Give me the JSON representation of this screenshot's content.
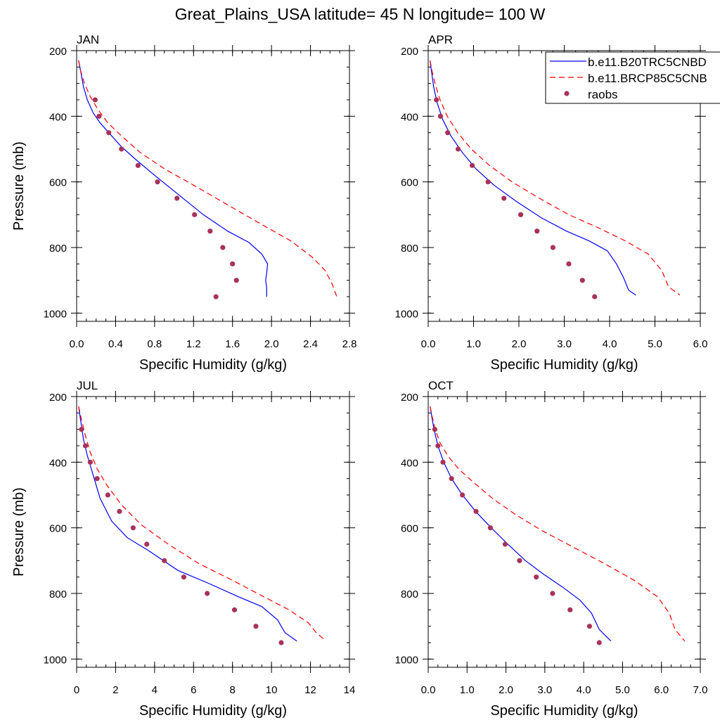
{
  "title": "Great_Plains_USA  latitude= 45 N longitude= 100 W",
  "colors": {
    "model1": "#0000ff",
    "model2": "#ff0000",
    "raobs": "#a8325a",
    "axis": "#000000"
  },
  "legend": {
    "entries": [
      "b.e11.B20TRC5CNBD",
      "b.e11.BRCP85C5CNB",
      "raobs"
    ]
  },
  "chart_data": [
    {
      "type": "line",
      "title": "JAN",
      "xlabel": "Specific Humidity (g/kg)",
      "ylabel": "Pressure (mb)",
      "xlim": [
        0,
        2.8
      ],
      "ylim": [
        200,
        1025
      ],
      "xticks": [
        0.0,
        0.4,
        0.8,
        1.2,
        1.6,
        2.0,
        2.4,
        2.8
      ],
      "xtick_labels": [
        "0.0",
        "0.4",
        "0.8",
        "1.2",
        "1.6",
        "2.0",
        "2.4",
        "2.8"
      ],
      "xminor": 0.1,
      "yticks": [
        200,
        400,
        600,
        800,
        1000
      ],
      "ytick_labels": [
        "200",
        "400",
        "600",
        "800",
        "1000"
      ],
      "series": [
        {
          "name": "b.e11.B20TRC5CNBD",
          "style": "solid",
          "x": [
            0.02,
            0.04,
            0.07,
            0.11,
            0.17,
            0.24,
            0.33,
            0.45,
            0.6,
            0.8,
            1.05,
            1.3,
            1.55,
            1.77,
            1.9,
            1.96,
            1.95,
            1.94,
            1.95,
            1.95
          ],
          "y": [
            230,
            260,
            310,
            350,
            390,
            420,
            450,
            490,
            530,
            580,
            640,
            700,
            750,
            785,
            820,
            850,
            880,
            900,
            920,
            950
          ]
        },
        {
          "name": "b.e11.BRCP85C5CNB",
          "style": "dashed",
          "x": [
            0.02,
            0.04,
            0.08,
            0.14,
            0.22,
            0.32,
            0.46,
            0.65,
            0.9,
            1.2,
            1.55,
            1.9,
            2.2,
            2.42,
            2.55,
            2.62,
            2.67
          ],
          "y": [
            230,
            260,
            300,
            340,
            380,
            420,
            460,
            510,
            560,
            610,
            670,
            730,
            780,
            830,
            870,
            910,
            950
          ]
        },
        {
          "name": "raobs",
          "style": "markers",
          "x": [
            0.19,
            0.23,
            0.33,
            0.46,
            0.63,
            0.83,
            1.03,
            1.21,
            1.37,
            1.5,
            1.6,
            1.64,
            1.43
          ],
          "y": [
            350,
            400,
            450,
            500,
            550,
            600,
            650,
            700,
            750,
            800,
            850,
            900,
            950
          ]
        }
      ]
    },
    {
      "type": "line",
      "title": "APR",
      "xlabel": "Specific Humidity (g/kg)",
      "ylabel": "",
      "xlim": [
        0,
        6.0
      ],
      "ylim": [
        200,
        1025
      ],
      "xticks": [
        0.0,
        1.0,
        2.0,
        3.0,
        4.0,
        5.0,
        6.0
      ],
      "xtick_labels": [
        "0.0",
        "1.0",
        "2.0",
        "3.0",
        "4.0",
        "5.0",
        "6.0"
      ],
      "xminor": 0.25,
      "yticks": [
        200,
        400,
        600,
        800,
        1000
      ],
      "ytick_labels": [
        "200",
        "400",
        "600",
        "800",
        "1000"
      ],
      "series": [
        {
          "name": "b.e11.B20TRC5CNBD",
          "style": "solid",
          "x": [
            0.04,
            0.07,
            0.12,
            0.2,
            0.32,
            0.5,
            0.75,
            1.05,
            1.45,
            1.95,
            2.5,
            3.05,
            3.55,
            3.95,
            4.15,
            4.3,
            4.42,
            4.58
          ],
          "y": [
            230,
            260,
            310,
            360,
            410,
            460,
            510,
            560,
            610,
            660,
            710,
            750,
            780,
            810,
            850,
            890,
            930,
            945
          ]
        },
        {
          "name": "b.e11.BRCP85C5CNB",
          "style": "dashed",
          "x": [
            0.04,
            0.08,
            0.15,
            0.26,
            0.42,
            0.65,
            0.95,
            1.35,
            1.85,
            2.45,
            3.1,
            3.75,
            4.35,
            4.85,
            5.15,
            5.3,
            5.55
          ],
          "y": [
            230,
            260,
            300,
            350,
            400,
            450,
            500,
            550,
            600,
            650,
            700,
            740,
            780,
            820,
            870,
            920,
            945
          ]
        },
        {
          "name": "raobs",
          "style": "markers",
          "x": [
            0.18,
            0.27,
            0.43,
            0.66,
            0.97,
            1.32,
            1.67,
            2.04,
            2.4,
            2.75,
            3.1,
            3.4,
            3.67
          ],
          "y": [
            350,
            400,
            450,
            500,
            550,
            600,
            650,
            700,
            750,
            800,
            850,
            900,
            950
          ]
        }
      ]
    },
    {
      "type": "line",
      "title": "JUL",
      "xlabel": "Specific Humidity (g/kg)",
      "ylabel": "Pressure (mb)",
      "xlim": [
        0,
        14
      ],
      "ylim": [
        200,
        1025
      ],
      "xticks": [
        0,
        2,
        4,
        6,
        8,
        10,
        12,
        14
      ],
      "xtick_labels": [
        "0",
        "2",
        "4",
        "6",
        "8",
        "10",
        "12",
        "14"
      ],
      "xminor": 0.5,
      "yticks": [
        200,
        400,
        600,
        800,
        1000
      ],
      "ytick_labels": [
        "200",
        "400",
        "600",
        "800",
        "1000"
      ],
      "series": [
        {
          "name": "b.e11.B20TRC5CNBD",
          "style": "solid",
          "x": [
            0.1,
            0.2,
            0.35,
            0.55,
            0.8,
            1.2,
            1.8,
            2.6,
            3.7,
            5.2,
            6.8,
            8.3,
            9.5,
            10.3,
            10.7,
            11.3
          ],
          "y": [
            230,
            270,
            330,
            380,
            430,
            510,
            580,
            630,
            670,
            730,
            770,
            810,
            840,
            880,
            920,
            945
          ]
        },
        {
          "name": "b.e11.BRCP85C5CNB",
          "style": "dashed",
          "x": [
            0.1,
            0.25,
            0.45,
            0.7,
            1.05,
            1.55,
            2.3,
            3.3,
            4.7,
            6.3,
            8.0,
            9.6,
            10.9,
            11.9,
            12.3,
            12.8
          ],
          "y": [
            230,
            270,
            320,
            370,
            420,
            470,
            530,
            590,
            650,
            710,
            760,
            810,
            850,
            890,
            920,
            945
          ]
        },
        {
          "name": "raobs",
          "style": "markers",
          "x": [
            0.25,
            0.45,
            0.7,
            1.05,
            1.6,
            2.2,
            2.9,
            3.6,
            4.5,
            5.5,
            6.7,
            8.1,
            9.2,
            10.5
          ],
          "y": [
            300,
            350,
            400,
            450,
            500,
            550,
            600,
            650,
            700,
            750,
            800,
            850,
            900,
            950
          ]
        }
      ]
    },
    {
      "type": "line",
      "title": "OCT",
      "xlabel": "Specific Humidity (g/kg)",
      "ylabel": "",
      "xlim": [
        0,
        7.0
      ],
      "ylim": [
        200,
        1025
      ],
      "xticks": [
        0.0,
        1.0,
        2.0,
        3.0,
        4.0,
        5.0,
        6.0,
        7.0
      ],
      "xtick_labels": [
        "0.0",
        "1.0",
        "2.0",
        "3.0",
        "4.0",
        "5.0",
        "6.0",
        "7.0"
      ],
      "xminor": 0.25,
      "yticks": [
        200,
        400,
        600,
        800,
        1000
      ],
      "ytick_labels": [
        "200",
        "400",
        "600",
        "800",
        "1000"
      ],
      "series": [
        {
          "name": "b.e11.B20TRC5CNBD",
          "style": "solid",
          "x": [
            0.05,
            0.09,
            0.15,
            0.25,
            0.4,
            0.6,
            0.88,
            1.22,
            1.62,
            2.05,
            2.5,
            2.95,
            3.45,
            3.9,
            4.2,
            4.4,
            4.7
          ],
          "y": [
            230,
            260,
            300,
            350,
            400,
            450,
            500,
            550,
            600,
            650,
            700,
            740,
            780,
            820,
            860,
            910,
            945
          ]
        },
        {
          "name": "b.e11.BRCP85C5CNB",
          "style": "dashed",
          "x": [
            0.05,
            0.1,
            0.18,
            0.3,
            0.5,
            0.78,
            1.15,
            1.65,
            2.25,
            2.95,
            3.75,
            4.55,
            5.3,
            5.9,
            6.2,
            6.35,
            6.6
          ],
          "y": [
            230,
            260,
            300,
            340,
            380,
            420,
            460,
            510,
            560,
            610,
            660,
            710,
            760,
            810,
            860,
            910,
            945
          ]
        },
        {
          "name": "raobs",
          "style": "markers",
          "x": [
            0.17,
            0.25,
            0.38,
            0.6,
            0.88,
            1.23,
            1.6,
            1.98,
            2.35,
            2.78,
            3.2,
            3.65,
            4.15,
            4.4
          ],
          "y": [
            300,
            350,
            400,
            450,
            500,
            550,
            600,
            650,
            700,
            750,
            800,
            850,
            900,
            950
          ]
        }
      ]
    }
  ]
}
